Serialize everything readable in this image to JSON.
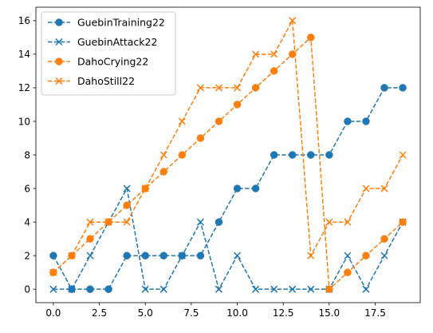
{
  "chart_data": {
    "type": "line",
    "title": "",
    "xlabel": "",
    "ylabel": "",
    "xlim": [
      -0.95,
      19.95
    ],
    "ylim": [
      -0.8,
      16.8
    ],
    "xticks": [
      0,
      2.5,
      5,
      7.5,
      10,
      12.5,
      15,
      17.5
    ],
    "xtick_labels": [
      "0.0",
      "2.5",
      "5.0",
      "7.5",
      "10.0",
      "12.5",
      "15.0",
      "17.5"
    ],
    "yticks": [
      0,
      2,
      4,
      6,
      8,
      10,
      12,
      14,
      16
    ],
    "ytick_labels": [
      "0",
      "2",
      "4",
      "6",
      "8",
      "10",
      "12",
      "14",
      "16"
    ],
    "grid": false,
    "legend_position": "top-left",
    "x": [
      0,
      1,
      2,
      3,
      4,
      5,
      6,
      7,
      8,
      9,
      10,
      11,
      12,
      13,
      14,
      15,
      16,
      17,
      18,
      19
    ],
    "series": [
      {
        "name": "GuebinTraining22",
        "color": "#1f77b4",
        "marker": "circle",
        "linestyle": "dashed",
        "values": [
          2,
          0,
          0,
          0,
          2,
          2,
          2,
          2,
          2,
          4,
          6,
          6,
          8,
          8,
          8,
          8,
          10,
          10,
          12,
          12
        ]
      },
      {
        "name": "GuebinAttack22",
        "color": "#1f77b4",
        "marker": "x",
        "linestyle": "dashed",
        "values": [
          0,
          0,
          2,
          4,
          6,
          0,
          0,
          2,
          4,
          0,
          2,
          0,
          0,
          0,
          0,
          0,
          2,
          0,
          2,
          4
        ]
      },
      {
        "name": "DahoCrying22",
        "color": "#ff7f0e",
        "marker": "circle",
        "linestyle": "dashed",
        "values": [
          1,
          2,
          3,
          4,
          5,
          6,
          7,
          8,
          9,
          10,
          11,
          12,
          13,
          14,
          15,
          0,
          1,
          2,
          3,
          4
        ]
      },
      {
        "name": "DahoStill22",
        "color": "#ff7f0e",
        "marker": "x",
        "linestyle": "dashed",
        "values": [
          1,
          2,
          4,
          4,
          4,
          6,
          8,
          10,
          12,
          12,
          12,
          14,
          14,
          16,
          2,
          4,
          4,
          6,
          6,
          8
        ]
      }
    ]
  }
}
